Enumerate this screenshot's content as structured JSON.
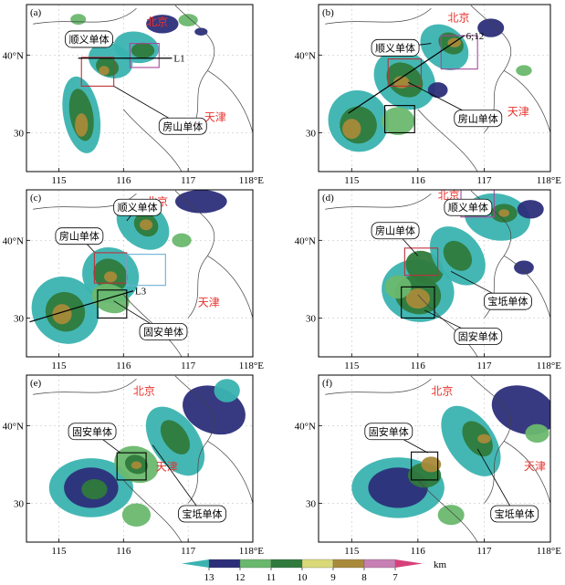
{
  "panels": [
    {
      "id": "a",
      "tag": "(a)",
      "cities": [
        {
          "name": "北京",
          "x": 116.35,
          "y": 43.8
        },
        {
          "name": "天津",
          "x": 117.25,
          "y": 31.5
        }
      ],
      "callouts": [
        {
          "text": "顺义单体",
          "bx": 115.1,
          "by": 43.1,
          "tx": 115.85,
          "ty": 41.6
        },
        {
          "text": "房山单体",
          "bx": 116.55,
          "by": 31.9,
          "tx": 115.85,
          "ty": 36.0
        }
      ],
      "boxes": [
        {
          "color": "#c0303a",
          "x0": 115.35,
          "y0": 36.0,
          "x1": 115.85,
          "y1": 39.7
        },
        {
          "color": "#a34a9a",
          "x0": 116.1,
          "y0": 38.4,
          "x1": 116.55,
          "y1": 41.5
        }
      ],
      "solid_box": null,
      "line": {
        "label": "L1",
        "x0": 115.3,
        "y0": 39.6,
        "x1": 116.75,
        "y1": 39.6
      },
      "echo": [
        {
          "lon": 115.35,
          "lat": 32.3,
          "rx": 0.28,
          "ry": 5.0,
          "rot": -10,
          "c": 0
        },
        {
          "lon": 115.35,
          "lat": 32.3,
          "rx": 0.18,
          "ry": 3.4,
          "rot": -10,
          "c": 3
        },
        {
          "lon": 115.35,
          "lat": 31.0,
          "rx": 0.1,
          "ry": 1.5,
          "rot": 0,
          "c": 5
        },
        {
          "lon": 115.8,
          "lat": 39.3,
          "rx": 0.35,
          "ry": 2.2,
          "rot": 20,
          "c": 0
        },
        {
          "lon": 115.75,
          "lat": 38.5,
          "rx": 0.18,
          "ry": 1.2,
          "rot": 20,
          "c": 3
        },
        {
          "lon": 115.7,
          "lat": 38.0,
          "rx": 0.08,
          "ry": 0.6,
          "rot": 0,
          "c": 5
        },
        {
          "lon": 116.2,
          "lat": 41.0,
          "rx": 0.35,
          "ry": 2.0,
          "rot": 10,
          "c": 0
        },
        {
          "lon": 116.3,
          "lat": 40.6,
          "rx": 0.18,
          "ry": 1.0,
          "rot": 0,
          "c": 3
        },
        {
          "lon": 116.6,
          "lat": 44.0,
          "rx": 0.25,
          "ry": 1.2,
          "rot": 0,
          "c": 1
        },
        {
          "lon": 117.0,
          "lat": 44.5,
          "rx": 0.15,
          "ry": 0.8,
          "rot": 0,
          "c": 2
        },
        {
          "lon": 115.3,
          "lat": 44.6,
          "rx": 0.12,
          "ry": 0.7,
          "rot": 0,
          "c": 2
        },
        {
          "lon": 117.2,
          "lat": 43.0,
          "rx": 0.1,
          "ry": 0.5,
          "rot": 0,
          "c": 1
        }
      ]
    },
    {
      "id": "b",
      "tag": "(b)",
      "cities": [
        {
          "name": "北京",
          "x": 116.45,
          "y": 44.3
        },
        {
          "name": "天津",
          "x": 117.35,
          "y": 32.2
        }
      ],
      "callouts": [
        {
          "text": "顺义单体",
          "bx": 115.3,
          "by": 42.0,
          "tx": 116.2,
          "ty": 41.5
        },
        {
          "text": "房山单体",
          "bx": 116.55,
          "by": 32.9,
          "tx": 115.85,
          "ty": 36.5
        }
      ],
      "boxes": [
        {
          "color": "#c0303a",
          "x0": 115.55,
          "y0": 36.0,
          "x1": 116.05,
          "y1": 39.5
        },
        {
          "color": "#a34a9a",
          "x0": 116.35,
          "y0": 38.2,
          "x1": 116.9,
          "y1": 42.5
        }
      ],
      "solid_box": {
        "x0": 115.5,
        "y0": 30.0,
        "x1": 115.95,
        "y1": 33.5
      },
      "line": {
        "label": "6;12",
        "x0": 114.95,
        "y0": 32.5,
        "x1": 116.7,
        "y1": 42.5
      },
      "echo": [
        {
          "lon": 115.1,
          "lat": 31.5,
          "rx": 0.45,
          "ry": 4.0,
          "rot": -30,
          "c": 0
        },
        {
          "lon": 115.1,
          "lat": 31.0,
          "rx": 0.28,
          "ry": 2.4,
          "rot": -30,
          "c": 3
        },
        {
          "lon": 115.0,
          "lat": 30.5,
          "rx": 0.14,
          "ry": 1.3,
          "rot": 0,
          "c": 5
        },
        {
          "lon": 115.8,
          "lat": 36.8,
          "rx": 0.5,
          "ry": 3.5,
          "rot": 40,
          "c": 0
        },
        {
          "lon": 115.8,
          "lat": 36.8,
          "rx": 0.3,
          "ry": 2.0,
          "rot": 40,
          "c": 3
        },
        {
          "lon": 115.75,
          "lat": 36.5,
          "rx": 0.12,
          "ry": 0.8,
          "rot": 0,
          "c": 5
        },
        {
          "lon": 116.4,
          "lat": 41.0,
          "rx": 0.4,
          "ry": 2.6,
          "rot": 40,
          "c": 0
        },
        {
          "lon": 116.5,
          "lat": 41.5,
          "rx": 0.2,
          "ry": 1.3,
          "rot": 30,
          "c": 3
        },
        {
          "lon": 116.55,
          "lat": 41.6,
          "rx": 0.1,
          "ry": 0.6,
          "rot": 0,
          "c": 5
        },
        {
          "lon": 115.7,
          "lat": 31.5,
          "rx": 0.25,
          "ry": 1.8,
          "rot": 0,
          "c": 2
        },
        {
          "lon": 117.1,
          "lat": 43.5,
          "rx": 0.2,
          "ry": 1.2,
          "rot": 0,
          "c": 1
        },
        {
          "lon": 117.6,
          "lat": 38.0,
          "rx": 0.12,
          "ry": 0.7,
          "rot": 0,
          "c": 2
        },
        {
          "lon": 116.3,
          "lat": 35.5,
          "rx": 0.15,
          "ry": 1.0,
          "rot": 0,
          "c": 1
        }
      ]
    },
    {
      "id": "c",
      "tag": "(c)",
      "cities": [
        {
          "name": "北京",
          "x": 116.35,
          "y": 44.5
        },
        {
          "name": "天津",
          "x": 117.15,
          "y": 31.5
        }
      ],
      "callouts": [
        {
          "text": "顺义单体",
          "bx": 115.85,
          "by": 45.3,
          "tx": 116.05,
          "ty": 42.5
        },
        {
          "text": "房山单体",
          "bx": 114.95,
          "by": 41.6,
          "tx": 115.55,
          "ty": 38.5
        },
        {
          "text": "固安单体",
          "bx": 116.25,
          "by": 29.3,
          "tx": 115.85,
          "ty": 32.2
        }
      ],
      "boxes": [
        {
          "color": "#c0303a",
          "x0": 115.55,
          "y0": 34.5,
          "x1": 116.05,
          "y1": 38.4
        },
        {
          "color": "#6bb0d6",
          "x0": 116.05,
          "y0": 34.2,
          "x1": 116.65,
          "y1": 38.2
        }
      ],
      "solid_box": {
        "x0": 115.6,
        "y0": 30.0,
        "x1": 116.05,
        "y1": 33.6
      },
      "line": {
        "label": "L3",
        "x0": 114.55,
        "y0": 29.5,
        "x1": 116.15,
        "y1": 33.5
      },
      "echo": [
        {
          "lon": 115.1,
          "lat": 31.0,
          "rx": 0.5,
          "ry": 4.5,
          "rot": -45,
          "c": 0
        },
        {
          "lon": 115.1,
          "lat": 30.8,
          "rx": 0.3,
          "ry": 2.6,
          "rot": -45,
          "c": 3
        },
        {
          "lon": 115.05,
          "lat": 30.5,
          "rx": 0.15,
          "ry": 1.3,
          "rot": 0,
          "c": 5
        },
        {
          "lon": 115.8,
          "lat": 35.5,
          "rx": 0.45,
          "ry": 3.5,
          "rot": 40,
          "c": 0
        },
        {
          "lon": 115.8,
          "lat": 35.5,
          "rx": 0.28,
          "ry": 2.0,
          "rot": 40,
          "c": 3
        },
        {
          "lon": 115.8,
          "lat": 35.3,
          "rx": 0.1,
          "ry": 0.7,
          "rot": 0,
          "c": 5
        },
        {
          "lon": 116.3,
          "lat": 42.0,
          "rx": 0.45,
          "ry": 2.8,
          "rot": 40,
          "c": 0
        },
        {
          "lon": 116.35,
          "lat": 42.0,
          "rx": 0.2,
          "ry": 1.4,
          "rot": 40,
          "c": 3
        },
        {
          "lon": 116.35,
          "lat": 42.0,
          "rx": 0.1,
          "ry": 0.7,
          "rot": 0,
          "c": 5
        },
        {
          "lon": 117.2,
          "lat": 45.0,
          "rx": 0.4,
          "ry": 1.5,
          "rot": 0,
          "c": 1
        },
        {
          "lon": 115.8,
          "lat": 32.5,
          "rx": 0.3,
          "ry": 1.8,
          "rot": 20,
          "c": 2
        },
        {
          "lon": 116.9,
          "lat": 40.0,
          "rx": 0.15,
          "ry": 0.9,
          "rot": 0,
          "c": 2
        }
      ]
    },
    {
      "id": "d",
      "tag": "(d)",
      "cities": [
        {
          "name": "北京",
          "x": 116.3,
          "y": 45.3
        },
        {
          "name": "天津",
          "x": 117.4,
          "y": 31.5
        }
      ],
      "callouts": [
        {
          "text": "顺义单体",
          "bx": 116.4,
          "by": 45.3,
          "tx": 116.5,
          "ty": 43.5
        },
        {
          "text": "房山单体",
          "bx": 115.3,
          "by": 42.3,
          "tx": 116.0,
          "ty": 38.0
        },
        {
          "text": "宝坻单体",
          "bx": 117.0,
          "by": 33.2,
          "tx": 116.5,
          "ty": 36.0
        },
        {
          "text": "固安单体",
          "bx": 116.55,
          "by": 28.7,
          "tx": 116.1,
          "ty": 31.0
        }
      ],
      "boxes": [
        {
          "color": "#c0303a",
          "x0": 115.8,
          "y0": 35.5,
          "x1": 116.3,
          "y1": 39.0
        },
        {
          "color": "#a34a9a",
          "x0": 116.65,
          "y0": 43.0,
          "x1": 117.15,
          "y1": 46.5
        }
      ],
      "solid_box": {
        "x0": 115.75,
        "y0": 30.0,
        "x1": 116.25,
        "y1": 34.0
      },
      "line": null,
      "echo": [
        {
          "lon": 116.0,
          "lat": 33.5,
          "rx": 0.55,
          "ry": 4.0,
          "rot": 10,
          "c": 0
        },
        {
          "lon": 116.0,
          "lat": 33.0,
          "rx": 0.35,
          "ry": 2.5,
          "rot": 10,
          "c": 3
        },
        {
          "lon": 116.0,
          "lat": 32.5,
          "rx": 0.18,
          "ry": 1.3,
          "rot": 0,
          "c": 5
        },
        {
          "lon": 116.1,
          "lat": 36.5,
          "rx": 0.3,
          "ry": 2.0,
          "rot": 30,
          "c": 3
        },
        {
          "lon": 116.6,
          "lat": 38.0,
          "rx": 0.5,
          "ry": 3.0,
          "rot": 50,
          "c": 0
        },
        {
          "lon": 116.6,
          "lat": 38.0,
          "rx": 0.25,
          "ry": 1.6,
          "rot": 50,
          "c": 3
        },
        {
          "lon": 117.2,
          "lat": 43.0,
          "rx": 0.5,
          "ry": 3.0,
          "rot": 10,
          "c": 0
        },
        {
          "lon": 117.3,
          "lat": 43.5,
          "rx": 0.2,
          "ry": 1.2,
          "rot": 0,
          "c": 3
        },
        {
          "lon": 117.3,
          "lat": 43.5,
          "rx": 0.08,
          "ry": 0.5,
          "rot": 0,
          "c": 5
        },
        {
          "lon": 117.7,
          "lat": 44.0,
          "rx": 0.2,
          "ry": 1.2,
          "rot": 0,
          "c": 1
        },
        {
          "lon": 115.7,
          "lat": 34.0,
          "rx": 0.2,
          "ry": 1.5,
          "rot": 0,
          "c": 2
        },
        {
          "lon": 117.6,
          "lat": 36.5,
          "rx": 0.15,
          "ry": 0.9,
          "rot": 0,
          "c": 1
        }
      ]
    },
    {
      "id": "e",
      "tag": "(e)",
      "cities": [
        {
          "name": "北京",
          "x": 116.15,
          "y": 44.0
        },
        {
          "name": "天津",
          "x": 116.5,
          "y": 34.2
        }
      ],
      "callouts": [
        {
          "text": "固安单体",
          "bx": 115.15,
          "by": 40.3,
          "tx": 115.95,
          "ty": 36.5
        },
        {
          "text": "宝坻单体",
          "bx": 116.85,
          "by": 29.7,
          "tx": 116.45,
          "ty": 37.5
        }
      ],
      "boxes": [],
      "solid_box": {
        "x0": 115.9,
        "y0": 33.0,
        "x1": 116.35,
        "y1": 36.5
      },
      "line": null,
      "echo": [
        {
          "lon": 115.5,
          "lat": 32.0,
          "rx": 0.65,
          "ry": 3.8,
          "rot": 0,
          "c": 0
        },
        {
          "lon": 115.5,
          "lat": 32.0,
          "rx": 0.42,
          "ry": 2.6,
          "rot": 0,
          "c": 1
        },
        {
          "lon": 115.55,
          "lat": 31.8,
          "rx": 0.2,
          "ry": 1.3,
          "rot": 0,
          "c": 3
        },
        {
          "lon": 116.2,
          "lat": 35.0,
          "rx": 0.35,
          "ry": 2.3,
          "rot": 20,
          "c": 2
        },
        {
          "lon": 116.2,
          "lat": 35.0,
          "rx": 0.18,
          "ry": 1.2,
          "rot": 20,
          "c": 3
        },
        {
          "lon": 116.2,
          "lat": 34.9,
          "rx": 0.08,
          "ry": 0.5,
          "rot": 0,
          "c": 5
        },
        {
          "lon": 116.8,
          "lat": 38.0,
          "rx": 0.6,
          "ry": 3.0,
          "rot": 55,
          "c": 0
        },
        {
          "lon": 116.8,
          "lat": 38.5,
          "rx": 0.3,
          "ry": 1.5,
          "rot": 55,
          "c": 3
        },
        {
          "lon": 117.4,
          "lat": 42.0,
          "rx": 0.5,
          "ry": 3.0,
          "rot": 20,
          "c": 1
        },
        {
          "lon": 116.2,
          "lat": 28.5,
          "rx": 0.22,
          "ry": 1.5,
          "rot": 0,
          "c": 2
        },
        {
          "lon": 117.6,
          "lat": 44.5,
          "rx": 0.2,
          "ry": 1.5,
          "rot": 0,
          "c": 0
        }
      ]
    },
    {
      "id": "f",
      "tag": "(f)",
      "cities": [
        {
          "name": "北京",
          "x": 116.2,
          "y": 44.0
        },
        {
          "name": "天津",
          "x": 117.6,
          "y": 34.3
        }
      ],
      "callouts": [
        {
          "text": "固安单体",
          "bx": 115.2,
          "by": 40.3,
          "tx": 116.15,
          "ty": 36.5
        },
        {
          "text": "宝坻单体",
          "bx": 117.1,
          "by": 29.7,
          "tx": 116.9,
          "ty": 37.0
        }
      ],
      "boxes": [],
      "solid_box": {
        "x0": 115.9,
        "y0": 33.0,
        "x1": 116.3,
        "y1": 36.6
      },
      "line": null,
      "echo": [
        {
          "lon": 115.7,
          "lat": 32.0,
          "rx": 0.7,
          "ry": 3.9,
          "rot": 0,
          "c": 0
        },
        {
          "lon": 115.7,
          "lat": 32.0,
          "rx": 0.45,
          "ry": 2.6,
          "rot": 0,
          "c": 1
        },
        {
          "lon": 116.1,
          "lat": 33.6,
          "rx": 0.25,
          "ry": 1.6,
          "rot": 0,
          "c": 3
        },
        {
          "lon": 116.2,
          "lat": 35.0,
          "rx": 0.15,
          "ry": 1.0,
          "rot": 0,
          "c": 5
        },
        {
          "lon": 116.8,
          "lat": 38.0,
          "rx": 0.6,
          "ry": 3.0,
          "rot": 55,
          "c": 0
        },
        {
          "lon": 116.9,
          "lat": 38.3,
          "rx": 0.3,
          "ry": 1.6,
          "rot": 55,
          "c": 3
        },
        {
          "lon": 117.0,
          "lat": 38.3,
          "rx": 0.1,
          "ry": 0.6,
          "rot": 0,
          "c": 5
        },
        {
          "lon": 117.6,
          "lat": 42.0,
          "rx": 0.5,
          "ry": 3.0,
          "rot": 20,
          "c": 1
        },
        {
          "lon": 116.5,
          "lat": 28.5,
          "rx": 0.2,
          "ry": 1.3,
          "rot": 0,
          "c": 2
        },
        {
          "lon": 117.8,
          "lat": 39.0,
          "rx": 0.18,
          "ry": 1.2,
          "rot": 0,
          "c": 2
        }
      ]
    }
  ],
  "axes": {
    "x_ticks": [
      {
        "v": 115,
        "label": "115"
      },
      {
        "v": 116,
        "label": "116"
      },
      {
        "v": 117,
        "label": "117"
      },
      {
        "v": 118,
        "label": "118°E"
      }
    ],
    "y_ticks": [
      {
        "v": 30,
        "label": "30"
      },
      {
        "v": 40,
        "label": "40°N"
      }
    ]
  },
  "colorbar": {
    "unit": "km",
    "labels": [
      "13",
      "12",
      "11",
      "10",
      "9",
      "8",
      "7"
    ],
    "colors": [
      "#3ab3b0",
      "#2c2e7a",
      "#6ab86e",
      "#2f7a3c",
      "#d9d97a",
      "#a88a3a",
      "#c77fb4",
      "#d6417a"
    ]
  }
}
